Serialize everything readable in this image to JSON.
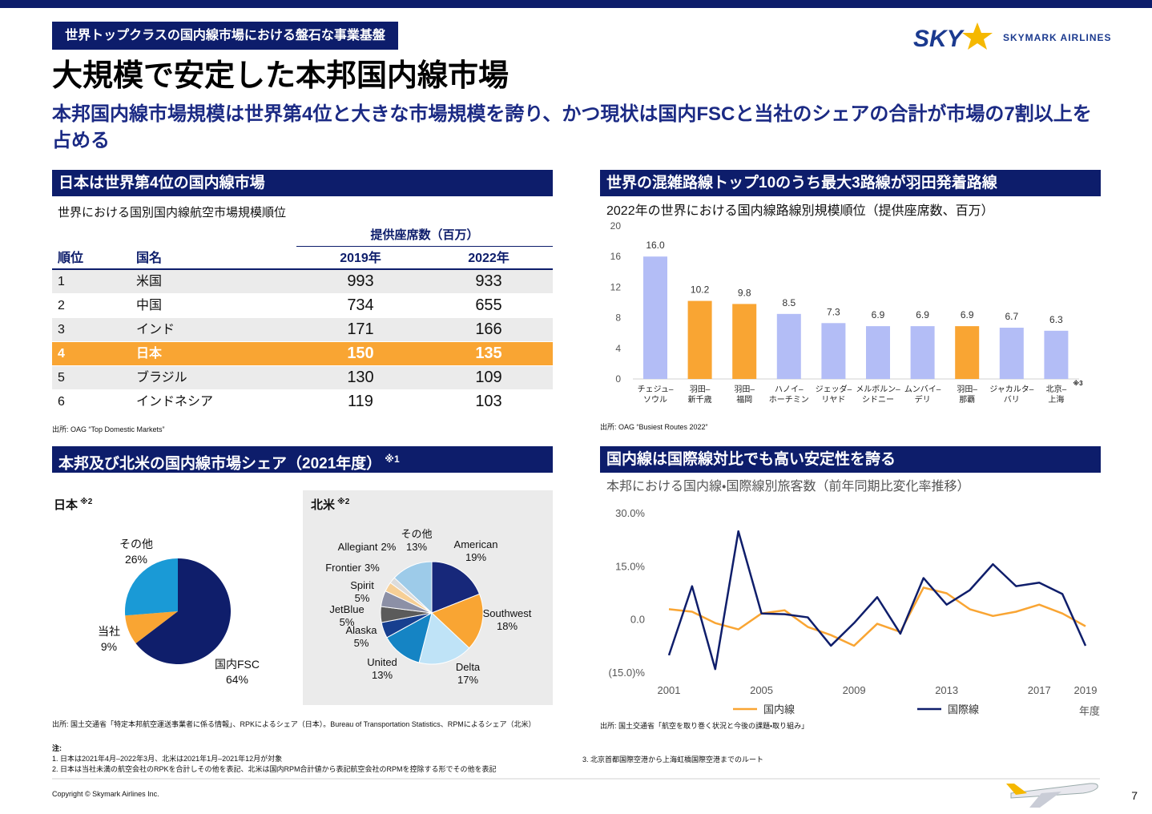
{
  "header": {
    "tag": "世界トップクラスの国内線市場における盤石な事業基盤",
    "title": "大規模で安定した本邦国内線市場",
    "subtitle": "本邦国内線市場規模は世界第4位と大きな市場規模を誇り、かつ現状は国内FSCと当社のシェアの合計が市場の7割以上を占める",
    "logo_mark": "SKY",
    "logo_name": "SKYMARK AIRLINES"
  },
  "sections": [
    {
      "heading": "日本は世界第4位の国内線市場"
    },
    {
      "heading": "世界の混雑路線トップ10のうち最大3路線が羽田発着路線"
    },
    {
      "heading": "本邦及び北米の国内線市場シェア（2021年度）",
      "note": "※1"
    },
    {
      "heading": "国内線は国際線対比でも高い安定性を誇る"
    }
  ],
  "table": {
    "caption": "世界における国別国内線航空市場規模順位",
    "group_header": "提供座席数（百万）",
    "columns": [
      "順位",
      "国名",
      "2019年",
      "2022年"
    ],
    "rows": [
      [
        1,
        "米国",
        993,
        933
      ],
      [
        2,
        "中国",
        734,
        655
      ],
      [
        3,
        "インド",
        171,
        166
      ],
      [
        4,
        "日本",
        150,
        135
      ],
      [
        5,
        "ブラジル",
        130,
        109
      ],
      [
        6,
        "インドネシア",
        119,
        103
      ]
    ],
    "highlight_row": 3,
    "source": "出所: OAG “Top Domestic Markets”"
  },
  "chart_data": [
    {
      "type": "bar",
      "title": "2022年の世界における国内線路線別規模順位（提供座席数、百万）",
      "categories": [
        "チェジュ–\nソウル",
        "羽田–\n新千歳",
        "羽田–\n福岡",
        "ハノイ–\nホーチミン",
        "ジェッダ–\nリヤド",
        "メルボルン–\nシドニー",
        "ムンバイ–\nデリ",
        "羽田–\n那覇",
        "ジャカルタ–\nバリ",
        "北京–\n上海"
      ],
      "category_notes": [
        null,
        null,
        null,
        null,
        null,
        null,
        null,
        null,
        null,
        "※3"
      ],
      "values": [
        16.0,
        10.2,
        9.8,
        8.5,
        7.3,
        6.9,
        6.9,
        6.9,
        6.7,
        6.3
      ],
      "value_labels": [
        "16.0",
        "10.2",
        "9.8",
        "8.5",
        "7.3",
        "6.9",
        "6.9",
        "6.9",
        "6.7",
        "6.3"
      ],
      "colors": [
        "#b3bdf6",
        "#f9a533",
        "#f9a533",
        "#b3bdf6",
        "#b3bdf6",
        "#b3bdf6",
        "#b3bdf6",
        "#f9a533",
        "#b3bdf6",
        "#b3bdf6"
      ],
      "ylim": [
        0,
        20
      ],
      "yticks": [
        0,
        4,
        8,
        12,
        16,
        20
      ],
      "grid": false,
      "source": "出所: OAG “Busiest Routes 2022”"
    },
    {
      "type": "pie",
      "title": "日本",
      "note": "※2",
      "categories": [
        "国内FSC",
        "当社",
        "その他"
      ],
      "values": [
        64,
        9,
        26
      ],
      "value_labels": [
        "64%",
        "9%",
        "26%"
      ],
      "colors": [
        "#0f1e6b",
        "#f9a533",
        "#1a9ad6"
      ]
    },
    {
      "type": "pie",
      "title": "北米",
      "note": "※2",
      "categories": [
        "American",
        "Southwest",
        "Delta",
        "United",
        "Alaska",
        "JetBlue",
        "Spirit",
        "Frontier",
        "Allegiant",
        "その他"
      ],
      "values": [
        19,
        18,
        17,
        13,
        5,
        5,
        5,
        3,
        2,
        13
      ],
      "value_labels": [
        "19%",
        "18%",
        "17%",
        "13%",
        "5%",
        "5%",
        "5%",
        "3%",
        "2%",
        "13%"
      ],
      "colors": [
        "#17287a",
        "#f9a533",
        "#bfe3f7",
        "#1584c4",
        "#173f8f",
        "#5b5b5b",
        "#8c90a6",
        "#f6cf96",
        "#dcdcdc",
        "#9dcbe9"
      ]
    },
    {
      "type": "line",
      "title": "本邦における国内線・国際線別旅客数（前年同期比変化率推移）",
      "x": [
        2001,
        2002,
        2003,
        2004,
        2005,
        2006,
        2007,
        2008,
        2009,
        2010,
        2011,
        2012,
        2013,
        2014,
        2015,
        2016,
        2017,
        2018,
        2019
      ],
      "xlim": [
        2001,
        2019
      ],
      "xticks": [
        2001,
        2005,
        2009,
        2013,
        2017,
        2019
      ],
      "ylim": [
        -15,
        30
      ],
      "yticks": [
        {
          "value": -15,
          "label": "(15.0)%"
        },
        {
          "value": 0,
          "label": "0.0"
        },
        {
          "value": 15,
          "label": "15.0%"
        },
        {
          "value": 30,
          "label": "30.0%"
        }
      ],
      "series": [
        {
          "name": "国内線",
          "color": "#f9a533",
          "values": [
            3.0,
            2.3,
            -0.9,
            -2.7,
            1.8,
            2.7,
            -2.0,
            -4.3,
            -7.3,
            -1.1,
            -3.4,
            9.1,
            7.5,
            3.0,
            1.1,
            2.3,
            4.3,
            1.8,
            -1.8
          ]
        },
        {
          "name": "国際線",
          "color": "#0f1e6b",
          "values": [
            -10.0,
            9.5,
            -13.9,
            25.0,
            1.8,
            1.6,
            0.7,
            -7.3,
            -0.9,
            6.4,
            -3.9,
            11.8,
            4.3,
            8.4,
            15.7,
            9.5,
            10.5,
            7.3,
            -7.3
          ]
        }
      ],
      "x_label": "年度",
      "source": "出所: 国土交通省「航空を取り巻く状況と今後の課題・取り組み」"
    }
  ],
  "footnotes": {
    "source": "出所: 国土交通省「特定本邦航空運送事業者に係る情報」、RPKによるシェア（日本）。Bureau of Transportation Statistics、RPMによるシェア（北米）",
    "notes_title": "注:",
    "notes": [
      "1. 日本は2021年4月–2022年3月、北米は2021年1月–2021年12月が対象",
      "2. 日本は当社未満の航空会社のRPKを合計しその他を表記、北米は国内RPM合計値から表記航空会社のRPMを控除する形でその他を表記",
      "3. 北京首都国際空港から上海虹橋国際空港までのルート"
    ]
  },
  "footer": {
    "copyright": "Copyright © Skymark Airlines Inc.",
    "page": "7"
  }
}
